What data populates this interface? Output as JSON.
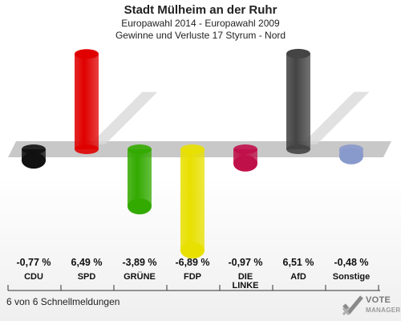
{
  "header": {
    "title": "Stadt Mülheim an der Ruhr",
    "subtitle1": "Europawahl 2014 - Europawahl 2009",
    "subtitle2": "Gewinne und Verluste 17 Styrum - Nord"
  },
  "footer": {
    "reports": "6 von 6 Schnellmeldungen",
    "logo_line1": "VOTE",
    "logo_line2": "MANAGER"
  },
  "chart_data": {
    "type": "bar",
    "categories": [
      "CDU",
      "SPD",
      "GRÜNE",
      "FDP",
      "DIE LINKE",
      "AfD",
      "Sonstige"
    ],
    "category_display": [
      "CDU",
      "SPD",
      "GRÜNE",
      "FDP",
      "DIE\nLINKE",
      "AfD",
      "Sonstige"
    ],
    "values": [
      -0.77,
      6.49,
      -3.89,
      -6.89,
      -0.97,
      6.51,
      -0.48
    ],
    "value_labels": [
      "-0,77 %",
      "6,49 %",
      "-3,89 %",
      "-6,89 %",
      "-0,97 %",
      "6,51 %",
      "-0,48 %"
    ],
    "colors": [
      "#111111",
      "#e00000",
      "#33aa00",
      "#e8e000",
      "#c0104a",
      "#444444",
      "#8899cc"
    ],
    "ylim": [
      -7,
      7
    ]
  }
}
